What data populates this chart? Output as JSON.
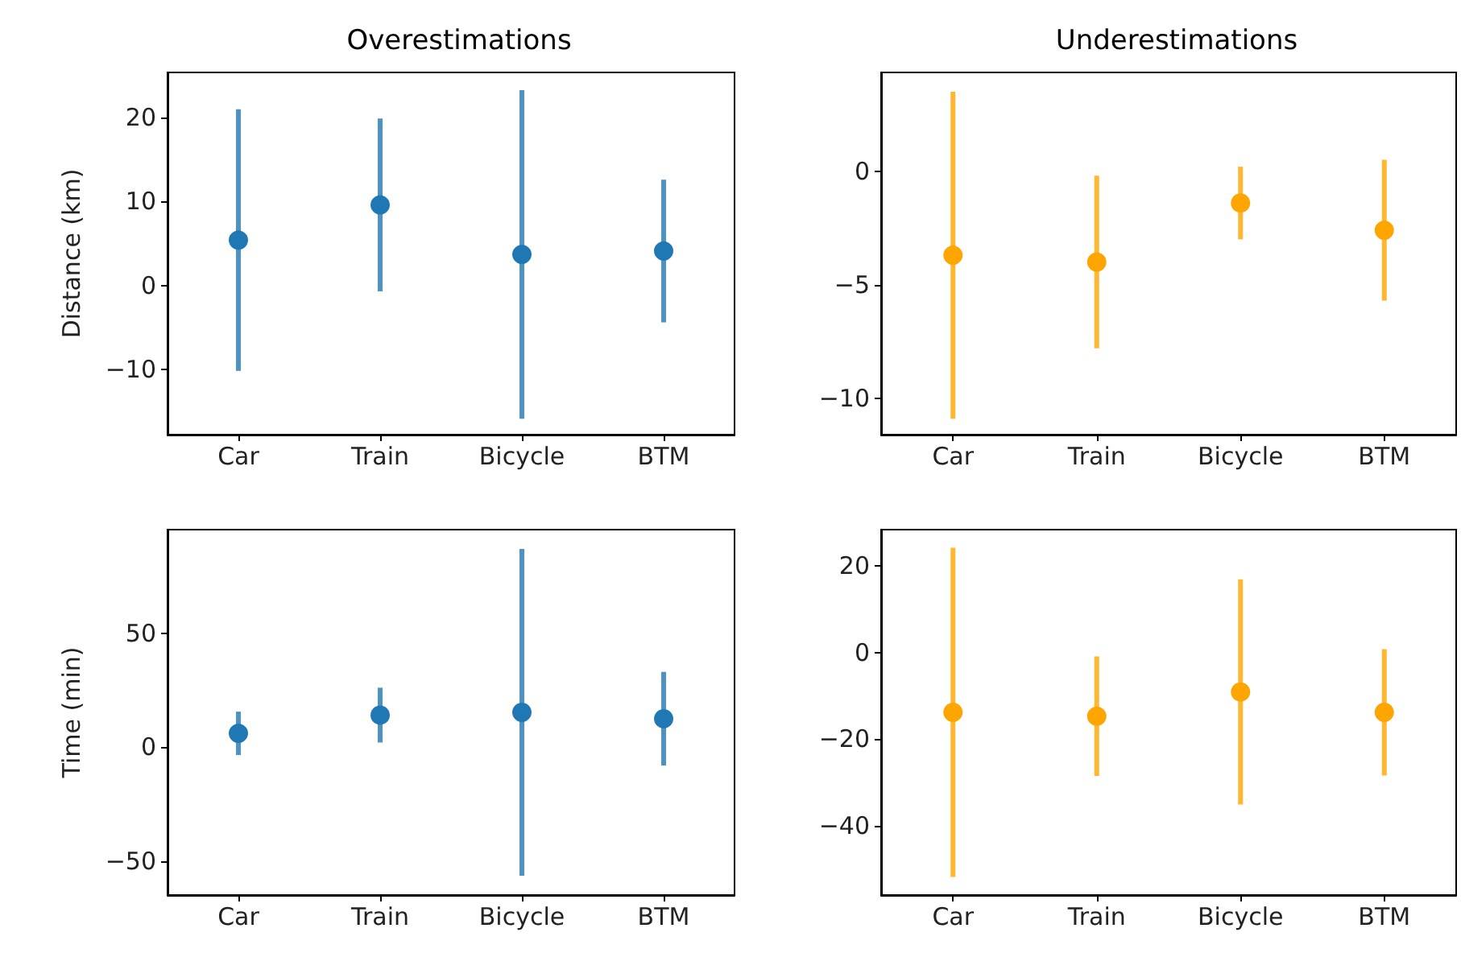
{
  "chart_data": [
    {
      "type": "scatter",
      "title": "Overestimations",
      "ylabel": "Distance (km)",
      "categories": [
        "Car",
        "Train",
        "Bicycle",
        "BTM"
      ],
      "ylim": [
        -17.8,
        25.4
      ],
      "yticks": [
        -10,
        0,
        10,
        20
      ],
      "grid": false,
      "marker": "circle",
      "series": [
        {
          "color": "#1f77b4",
          "values": [
            5.4,
            9.6,
            3.7,
            4.1
          ],
          "errors": [
            15.6,
            10.3,
            19.6,
            8.5
          ]
        }
      ]
    },
    {
      "type": "scatter",
      "title": "Underestimations",
      "categories": [
        "Car",
        "Train",
        "Bicycle",
        "BTM"
      ],
      "ylim": [
        -11.6,
        4.35
      ],
      "yticks": [
        -10,
        -5,
        0
      ],
      "grid": false,
      "marker": "circle",
      "series": [
        {
          "color": "#ffa500",
          "values": [
            -3.7,
            -4.0,
            -1.4,
            -2.6
          ],
          "errors": [
            7.2,
            3.8,
            1.6,
            3.1
          ]
        }
      ]
    },
    {
      "type": "scatter",
      "ylabel": "Time (min)",
      "categories": [
        "Car",
        "Train",
        "Bicycle",
        "BTM"
      ],
      "ylim": [
        -64.7,
        95.3
      ],
      "yticks": [
        -50,
        0,
        50
      ],
      "grid": false,
      "marker": "circle",
      "series": [
        {
          "color": "#1f77b4",
          "values": [
            6.1,
            14.1,
            15.3,
            12.5
          ],
          "errors": [
            9.5,
            12,
            71.5,
            20.5
          ]
        }
      ]
    },
    {
      "type": "scatter",
      "categories": [
        "Car",
        "Train",
        "Bicycle",
        "BTM"
      ],
      "ylim": [
        -56,
        28.4
      ],
      "yticks": [
        -40,
        -20,
        0,
        20
      ],
      "grid": false,
      "marker": "circle",
      "series": [
        {
          "color": "#ffa500",
          "values": [
            -13.8,
            -14.7,
            -9.1,
            -13.8
          ],
          "errors": [
            38,
            13.8,
            26,
            14.6
          ]
        }
      ]
    }
  ]
}
